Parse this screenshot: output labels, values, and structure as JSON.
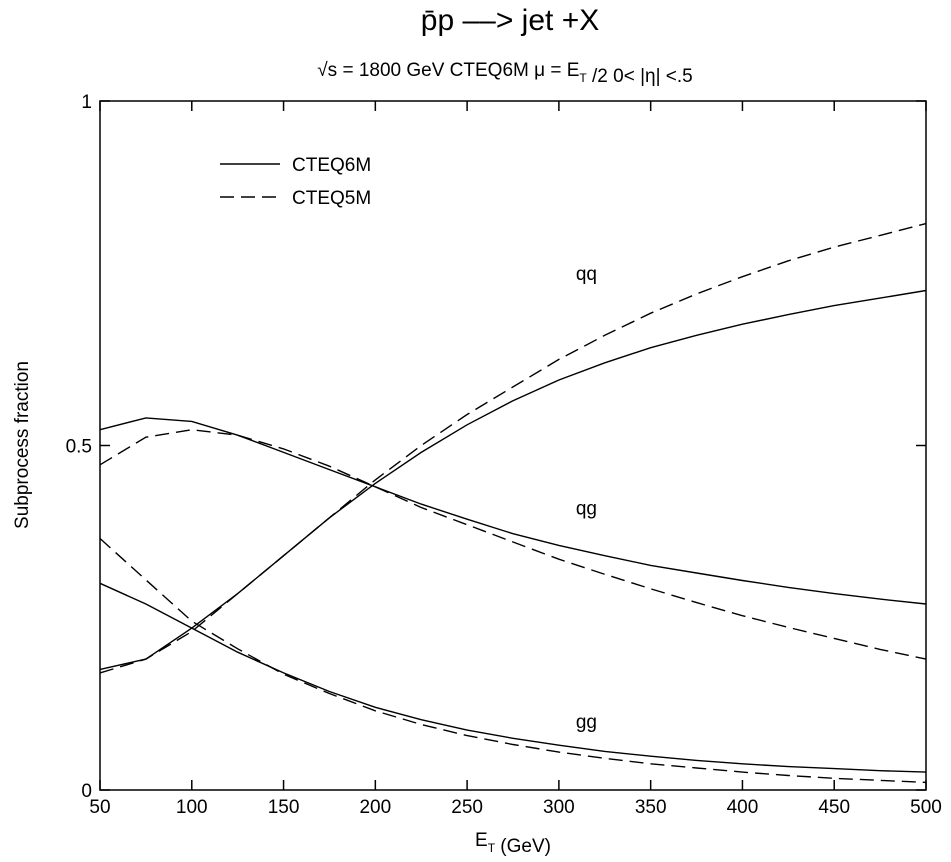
{
  "chart_data": {
    "type": "line",
    "title": "p̄p ––> jet +X",
    "subtitle": "√s = 1800 GeV   CTEQ6M   μ = E_T /2    0< |η| <.5",
    "xlabel": "E_T (GeV)",
    "ylabel": "Subprocess fraction",
    "xlim": [
      50,
      500
    ],
    "ylim": [
      0,
      1
    ],
    "x_ticks": [
      50,
      100,
      150,
      200,
      250,
      300,
      350,
      400,
      450,
      500
    ],
    "y_ticks": [
      0,
      0.5,
      1
    ],
    "y_tick_labels": [
      "0",
      "0.5",
      "1"
    ],
    "grid": false,
    "legend": {
      "position": "top-left",
      "entries": [
        {
          "label": "CTEQ6M",
          "style": "solid"
        },
        {
          "label": "CTEQ5M",
          "style": "dashed"
        }
      ]
    },
    "annotations": [
      {
        "text": "qq",
        "x": 315,
        "y": 0.74
      },
      {
        "text": "qg",
        "x": 315,
        "y": 0.4
      },
      {
        "text": "gg",
        "x": 315,
        "y": 0.09
      }
    ],
    "x": [
      50,
      75,
      100,
      125,
      150,
      175,
      200,
      225,
      250,
      275,
      300,
      325,
      350,
      375,
      400,
      425,
      450,
      475,
      500
    ],
    "series": [
      {
        "label": "qq",
        "pdf": "CTEQ6M",
        "style": "solid",
        "values": [
          0.175,
          0.19,
          0.235,
          0.285,
          0.34,
          0.395,
          0.445,
          0.49,
          0.53,
          0.565,
          0.595,
          0.62,
          0.642,
          0.66,
          0.676,
          0.69,
          0.703,
          0.714,
          0.725
        ]
      },
      {
        "label": "qq",
        "pdf": "CTEQ5M",
        "style": "dashed",
        "values": [
          0.17,
          0.19,
          0.23,
          0.285,
          0.34,
          0.395,
          0.45,
          0.5,
          0.545,
          0.585,
          0.625,
          0.66,
          0.692,
          0.72,
          0.745,
          0.768,
          0.788,
          0.805,
          0.822
        ]
      },
      {
        "label": "qg",
        "pdf": "CTEQ6M",
        "style": "solid",
        "values": [
          0.523,
          0.54,
          0.535,
          0.515,
          0.49,
          0.465,
          0.44,
          0.415,
          0.393,
          0.372,
          0.355,
          0.34,
          0.326,
          0.315,
          0.304,
          0.294,
          0.285,
          0.277,
          0.27
        ]
      },
      {
        "label": "qg",
        "pdf": "CTEQ5M",
        "style": "dashed",
        "values": [
          0.472,
          0.512,
          0.523,
          0.515,
          0.495,
          0.47,
          0.44,
          0.41,
          0.385,
          0.36,
          0.335,
          0.313,
          0.292,
          0.272,
          0.253,
          0.236,
          0.22,
          0.204,
          0.19
        ]
      },
      {
        "label": "gg",
        "pdf": "CTEQ6M",
        "style": "solid",
        "values": [
          0.3,
          0.27,
          0.235,
          0.2,
          0.17,
          0.143,
          0.12,
          0.102,
          0.087,
          0.075,
          0.065,
          0.056,
          0.049,
          0.043,
          0.038,
          0.034,
          0.031,
          0.028,
          0.026
        ]
      },
      {
        "label": "gg",
        "pdf": "CTEQ5M",
        "style": "dashed",
        "values": [
          0.365,
          0.305,
          0.245,
          0.205,
          0.168,
          0.14,
          0.115,
          0.095,
          0.079,
          0.066,
          0.055,
          0.046,
          0.038,
          0.032,
          0.026,
          0.021,
          0.017,
          0.014,
          0.011
        ]
      }
    ]
  }
}
